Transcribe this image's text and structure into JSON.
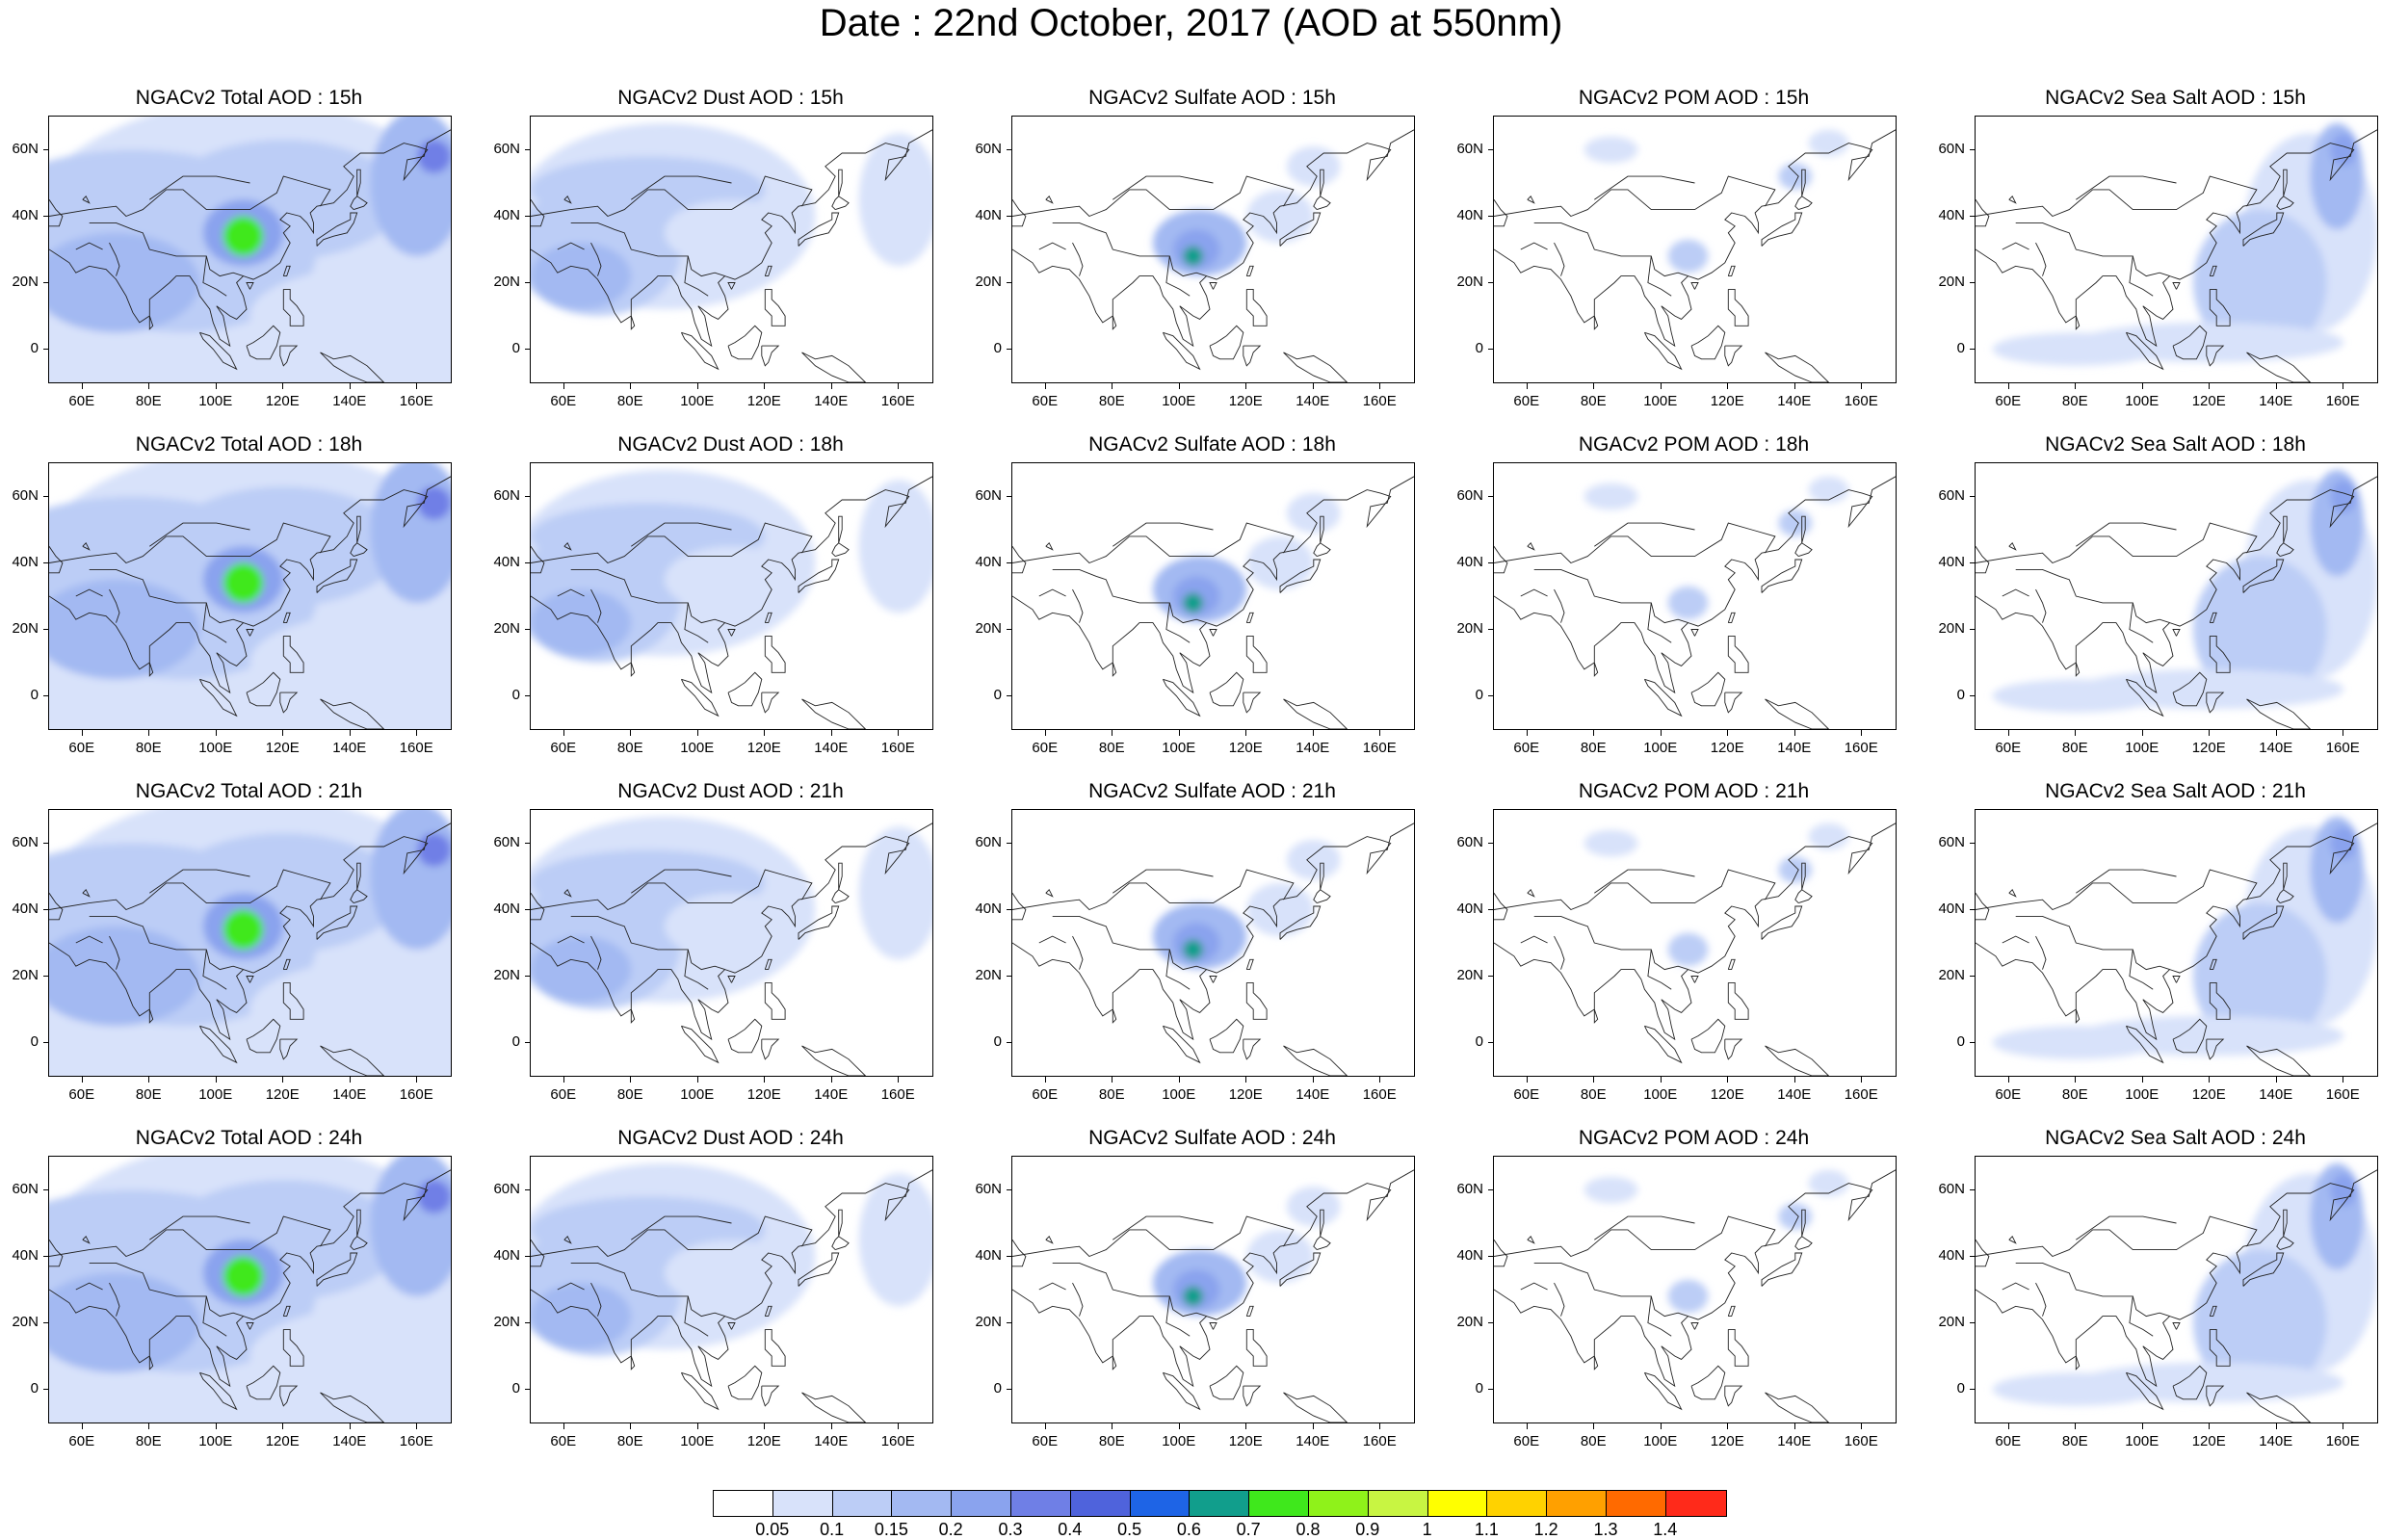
{
  "title": "Date : 22nd October, 2017 (AOD at 550nm)",
  "rows": [
    "15h",
    "18h",
    "21h",
    "24h"
  ],
  "columns": [
    {
      "key": "total",
      "titles": [
        "NGACv2 Total AOD : 15h",
        "NGACv2 Total AOD : 18h",
        "NGACv2 Total AOD : 21h",
        "NGACv2 Total AOD : 24h"
      ]
    },
    {
      "key": "dust",
      "titles": [
        "NGACv2 Dust AOD : 15h",
        "NGACv2 Dust AOD : 18h",
        "NGACv2 Dust AOD : 21h",
        "NGACv2 Dust AOD : 24h"
      ]
    },
    {
      "key": "sulfate",
      "titles": [
        "NGACv2 Sulfate AOD : 15h",
        "NGACv2 Sulfate AOD : 18h",
        "NGACv2 Sulfate AOD : 21h",
        "NGACv2 Sulfate AOD : 24h"
      ]
    },
    {
      "key": "pom",
      "titles": [
        "NGACv2 POM AOD : 15h",
        "NGACv2 POM AOD : 18h",
        "NGACv2 POM AOD : 21h",
        "NGACv2 POM AOD : 24h"
      ]
    },
    {
      "key": "seasalt",
      "titles": [
        "NGACv2 Sea Salt AOD : 15h",
        "NGACv2 Sea Salt AOD : 18h",
        "NGACv2 Sea Salt AOD : 21h",
        "NGACv2 Sea Salt  AOD : 24h"
      ]
    }
  ],
  "y_ticks": [
    "60N",
    "40N",
    "20N",
    "0"
  ],
  "x_ticks": [
    "60E",
    "80E",
    "100E",
    "120E",
    "140E",
    "160E"
  ],
  "colorbar": {
    "labels": [
      "0.05",
      "0.1",
      "0.15",
      "0.2",
      "0.3",
      "0.4",
      "0.5",
      "0.6",
      "0.7",
      "0.8",
      "0.9",
      "1",
      "1.1",
      "1.2",
      "1.3",
      "1.4"
    ],
    "colors": [
      "#ffffff",
      "#d8e2fa",
      "#bccdf6",
      "#a3b9f2",
      "#8aa3ee",
      "#6f7fe6",
      "#4f63dc",
      "#1e64e6",
      "#119e8c",
      "#3fe81c",
      "#8ff21a",
      "#c8f542",
      "#ffff00",
      "#ffd200",
      "#ffa000",
      "#ff6a00",
      "#ff2a1a"
    ]
  },
  "map_extent": {
    "lon_min": 50,
    "lon_max": 170,
    "lat_min": -10,
    "lat_max": 70
  }
}
